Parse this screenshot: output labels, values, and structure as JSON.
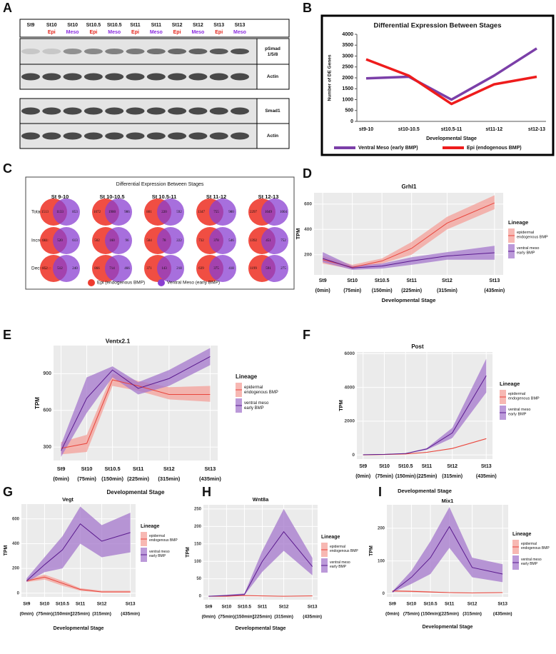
{
  "panel_labels": [
    "A",
    "B",
    "C",
    "D",
    "E",
    "F",
    "G",
    "H",
    "I"
  ],
  "blot": {
    "lanes": [
      {
        "stage": "St9"
      },
      {
        "stage": "St10",
        "tissue": "Epi",
        "color": "#e3241b"
      },
      {
        "stage": "St10",
        "tissue": "Meso",
        "color": "#8b2be0"
      },
      {
        "stage": "St10.5",
        "tissue": "Epi",
        "color": "#e3241b"
      },
      {
        "stage": "St10.5",
        "tissue": "Meso",
        "color": "#8b2be0"
      },
      {
        "stage": "St11",
        "tissue": "Epi",
        "color": "#e3241b"
      },
      {
        "stage": "St11",
        "tissue": "Meso",
        "color": "#8b2be0"
      },
      {
        "stage": "St12",
        "tissue": "Epi",
        "color": "#e3241b"
      },
      {
        "stage": "St12",
        "tissue": "Meso",
        "color": "#8b2be0"
      },
      {
        "stage": "St13",
        "tissue": "Epi",
        "color": "#e3241b"
      },
      {
        "stage": "St13",
        "tissue": "Meso",
        "color": "#8b2be0"
      }
    ],
    "rows": [
      "pSmad 1/5/8",
      "Actin",
      "Smad1",
      "Actin"
    ]
  },
  "venn": {
    "title": "Differential Expression Between Stages",
    "columns": [
      "St 9-10",
      "St 10-10.5",
      "St 10.5-11",
      "St 11-12",
      "St 12-13"
    ],
    "rows": [
      "Total",
      "Increase",
      "Decrease"
    ],
    "counts": [
      [
        [
          1513,
          1133,
          853
        ],
        [
          1072,
          1900,
          986
        ],
        [
          801,
          220,
          592
        ],
        [
          1347,
          755,
          980
        ],
        [
          2297,
          1049,
          1004
        ]
      ],
      [
        [
          661,
          520,
          613
        ],
        [
          502,
          160,
          96
        ],
        [
          584,
          78,
          222
        ],
        [
          732,
          378,
          546
        ],
        [
          1392,
          451,
          752
        ]
      ],
      [
        [
          852,
          512,
          240
        ],
        [
          866,
          714,
          466
        ],
        [
          371,
          143,
          218
        ],
        [
          639,
          375,
          418
        ],
        [
          1199,
          591,
          275
        ]
      ]
    ],
    "legend": [
      {
        "name": "Epi (endogenous BMP)",
        "color": "#ee3b2f"
      },
      {
        "name": "Ventral Meso (early BMP)",
        "color": "#8a3fd1"
      }
    ]
  },
  "chart_data": [
    {
      "type": "line",
      "title": "Differential Expression Between Stages",
      "ylabel": "Number of DE Genes",
      "xlabel": "Developmental Stage",
      "categories": [
        "st9-10",
        "st10-10.5",
        "st10.5-11",
        "st11-12",
        "st12-13"
      ],
      "ylim": [
        0,
        4000
      ],
      "yticks": [
        0,
        500,
        1000,
        1500,
        2000,
        2500,
        3000,
        3500,
        4000
      ],
      "legend": "bottom",
      "series": [
        {
          "name": "Ventral Meso (early BMP)",
          "color": "#7b3fa8",
          "values": [
            1975,
            2050,
            1000,
            2100,
            3350
          ]
        },
        {
          "name": "Epi (endogenous BMP)",
          "color": "#ee1c1c",
          "values": [
            2850,
            2100,
            800,
            1700,
            2050
          ]
        }
      ]
    },
    {
      "type": "line",
      "title": "Grhl1",
      "ylabel": "TPM",
      "xlabel": "Developmental Stage",
      "legend_title": "Lineage",
      "grid": true,
      "x": [
        0,
        75,
        150,
        225,
        315,
        435
      ],
      "xlim": [
        -22,
        457
      ],
      "xticks": [
        {
          "value": 0,
          "label": "St9"
        },
        {
          "value": 75,
          "label": "St10"
        },
        {
          "value": 150,
          "label": "St10.5"
        },
        {
          "value": 225,
          "label": "St11"
        },
        {
          "value": 315,
          "label": "St12"
        },
        {
          "value": 435,
          "label": "St13"
        }
      ],
      "xticks_time": [
        {
          "value": 0,
          "label": "(0min)"
        },
        {
          "value": 75,
          "label": "(75min)"
        },
        {
          "value": 150,
          "label": "(150min)"
        },
        {
          "value": 225,
          "label": "(225min)"
        },
        {
          "value": 315,
          "label": "(315min)"
        },
        {
          "value": 435,
          "label": "(435min)"
        }
      ],
      "ylim": [
        40,
        690
      ],
      "yticks": [
        200,
        400,
        600
      ],
      "series": [
        {
          "name": "epidermal endogenous BMP",
          "color": "#e8453c",
          "band_color": "#f4a09a",
          "values": [
            160,
            100,
            150,
            250,
            450,
            610
          ],
          "lower": [
            130,
            85,
            130,
            200,
            400,
            560
          ],
          "upper": [
            190,
            120,
            170,
            300,
            500,
            670
          ]
        },
        {
          "name": "ventral meso early BMP",
          "color": "#5b1a8e",
          "band_color": "#a477cc",
          "values": [
            170,
            95,
            110,
            150,
            190,
            215
          ],
          "lower": [
            140,
            80,
            90,
            120,
            160,
            160
          ],
          "upper": [
            220,
            110,
            130,
            180,
            220,
            270
          ]
        }
      ]
    },
    {
      "type": "line",
      "title": "Ventx2.1",
      "ylabel": "TPM",
      "xlabel": "Developmental Stage",
      "legend_title": "Lineage",
      "grid": true,
      "x": [
        0,
        75,
        150,
        225,
        315,
        435
      ],
      "xlim": [
        -22,
        457
      ],
      "xticks": [
        {
          "value": 0,
          "label": "St9"
        },
        {
          "value": 75,
          "label": "St10"
        },
        {
          "value": 150,
          "label": "St10.5"
        },
        {
          "value": 225,
          "label": "St11"
        },
        {
          "value": 315,
          "label": "St12"
        },
        {
          "value": 435,
          "label": "St13"
        }
      ],
      "xticks_time": [
        {
          "value": 0,
          "label": "(0min)"
        },
        {
          "value": 75,
          "label": "(75min)"
        },
        {
          "value": 150,
          "label": "(150min)"
        },
        {
          "value": 225,
          "label": "(225min)"
        },
        {
          "value": 315,
          "label": "(315min)"
        },
        {
          "value": 435,
          "label": "(435min)"
        }
      ],
      "ylim": [
        190,
        1130
      ],
      "yticks": [
        300,
        600,
        900
      ],
      "series": [
        {
          "name": "epidermal endogenous BMP",
          "color": "#e8453c",
          "band_color": "#f4a09a",
          "values": [
            290,
            330,
            850,
            800,
            730,
            730
          ],
          "lower": [
            240,
            260,
            800,
            760,
            690,
            670
          ],
          "upper": [
            340,
            400,
            900,
            840,
            790,
            800
          ]
        },
        {
          "name": "ventral meso early BMP",
          "color": "#5b1a8e",
          "band_color": "#a477cc",
          "values": [
            270,
            700,
            930,
            780,
            860,
            1040
          ],
          "lower": [
            220,
            580,
            870,
            730,
            800,
            970
          ],
          "upper": [
            320,
            870,
            960,
            830,
            930,
            1110
          ]
        }
      ]
    },
    {
      "type": "line",
      "title": "Post",
      "ylabel": "TPM",
      "xlabel": "Developmental Stage",
      "legend_title": "Lineage",
      "grid": true,
      "x": [
        0,
        75,
        150,
        225,
        315,
        435
      ],
      "xlim": [
        -22,
        457
      ],
      "xticks": [
        {
          "value": 0,
          "label": "St9"
        },
        {
          "value": 75,
          "label": "St10"
        },
        {
          "value": 150,
          "label": "St10.5"
        },
        {
          "value": 225,
          "label": "St11"
        },
        {
          "value": 315,
          "label": "St12"
        },
        {
          "value": 435,
          "label": "St13"
        }
      ],
      "xticks_time": [
        {
          "value": 0,
          "label": "(0min)"
        },
        {
          "value": 75,
          "label": "(75min)"
        },
        {
          "value": 150,
          "label": "(150min)"
        },
        {
          "value": 225,
          "label": "(225min)"
        },
        {
          "value": 315,
          "label": "(315min)"
        },
        {
          "value": 435,
          "label": "(435min)"
        }
      ],
      "ylim": [
        -250,
        6100
      ],
      "yticks": [
        0,
        2000,
        4000,
        6000
      ],
      "series": [
        {
          "name": "epidermal endogenous BMP",
          "color": "#e8453c",
          "band_color": "#f4a09a",
          "values": [
            0,
            20,
            50,
            150,
            380,
            960
          ],
          "lower": [
            0,
            10,
            40,
            130,
            350,
            930
          ],
          "upper": [
            10,
            30,
            60,
            170,
            410,
            990
          ]
        },
        {
          "name": "ventral meso early BMP",
          "color": "#5b1a8e",
          "band_color": "#a477cc",
          "values": [
            10,
            30,
            80,
            350,
            1300,
            4700
          ],
          "lower": [
            0,
            20,
            60,
            300,
            1000,
            3700
          ],
          "upper": [
            20,
            40,
            100,
            400,
            1600,
            5700
          ]
        }
      ]
    },
    {
      "type": "line",
      "title": "Vegt",
      "ylabel": "TPM",
      "xlabel": "Developmental Stage",
      "legend_title": "Lineage",
      "grid": true,
      "x": [
        0,
        75,
        150,
        225,
        315,
        435
      ],
      "xlim": [
        -22,
        457
      ],
      "xticks": [
        {
          "value": 0,
          "label": "St9"
        },
        {
          "value": 75,
          "label": "St10"
        },
        {
          "value": 150,
          "label": "St10.5"
        },
        {
          "value": 225,
          "label": "St11"
        },
        {
          "value": 315,
          "label": "St12"
        },
        {
          "value": 435,
          "label": "St13"
        }
      ],
      "xticks_time": [
        {
          "value": 0,
          "label": "(0min)"
        },
        {
          "value": 75,
          "label": "(75min)"
        },
        {
          "value": 150,
          "label": "(150min)"
        },
        {
          "value": 225,
          "label": "(225min)"
        },
        {
          "value": 315,
          "label": "(315min)"
        },
        {
          "value": 435,
          "label": "(435min)"
        }
      ],
      "ylim": [
        -30,
        720
      ],
      "yticks": [
        0,
        200,
        400,
        600
      ],
      "series": [
        {
          "name": "epidermal endogenous BMP",
          "color": "#e8453c",
          "band_color": "#f4a09a",
          "values": [
            100,
            130,
            80,
            30,
            10,
            10
          ],
          "lower": [
            90,
            110,
            60,
            20,
            5,
            5
          ],
          "upper": [
            110,
            150,
            100,
            40,
            20,
            20
          ]
        },
        {
          "name": "ventral meso early BMP",
          "color": "#5b1a8e",
          "band_color": "#a477cc",
          "values": [
            100,
            230,
            350,
            560,
            420,
            490
          ],
          "lower": [
            90,
            170,
            200,
            400,
            290,
            330
          ],
          "upper": [
            120,
            290,
            460,
            700,
            550,
            650
          ]
        }
      ]
    },
    {
      "type": "line",
      "title": "Wnt8a",
      "ylabel": "TPM",
      "xlabel": "Developmental Stage",
      "legend_title": "Lineage",
      "grid": true,
      "x": [
        0,
        75,
        150,
        225,
        315,
        435
      ],
      "xlim": [
        -22,
        457
      ],
      "xticks": [
        {
          "value": 0,
          "label": "St9"
        },
        {
          "value": 75,
          "label": "St10"
        },
        {
          "value": 150,
          "label": "St10.5"
        },
        {
          "value": 225,
          "label": "St11"
        },
        {
          "value": 315,
          "label": "St12"
        },
        {
          "value": 435,
          "label": "St13"
        }
      ],
      "xticks_time": [
        {
          "value": 0,
          "label": "(0min)"
        },
        {
          "value": 75,
          "label": "(75min)"
        },
        {
          "value": 150,
          "label": "(150min)"
        },
        {
          "value": 225,
          "label": "(225min)"
        },
        {
          "value": 315,
          "label": "(315min)"
        },
        {
          "value": 435,
          "label": "(435min)"
        }
      ],
      "ylim": [
        -10,
        262
      ],
      "yticks": [
        0,
        50,
        100,
        150,
        200,
        250
      ],
      "series": [
        {
          "name": "epidermal endogenous BMP",
          "color": "#e8453c",
          "band_color": "#f4a09a",
          "values": [
            0,
            0,
            2,
            1,
            0,
            1
          ],
          "lower": [
            0,
            0,
            1,
            0,
            0,
            0
          ],
          "upper": [
            1,
            1,
            3,
            2,
            1,
            2
          ]
        },
        {
          "name": "ventral meso early BMP",
          "color": "#5b1a8e",
          "band_color": "#a477cc",
          "values": [
            0,
            2,
            5,
            100,
            185,
            85
          ],
          "lower": [
            0,
            1,
            3,
            70,
            130,
            60
          ],
          "upper": [
            1,
            4,
            8,
            130,
            250,
            110
          ]
        }
      ]
    },
    {
      "type": "line",
      "title": "Mix1",
      "ylabel": "TPM",
      "xlabel": "Developmental Stage",
      "legend_title": "Lineage",
      "grid": true,
      "x": [
        0,
        75,
        150,
        225,
        315,
        435
      ],
      "xlim": [
        -22,
        457
      ],
      "xticks": [
        {
          "value": 0,
          "label": "St9"
        },
        {
          "value": 75,
          "label": "St10"
        },
        {
          "value": 150,
          "label": "St10.5"
        },
        {
          "value": 225,
          "label": "St11"
        },
        {
          "value": 315,
          "label": "St12"
        },
        {
          "value": 435,
          "label": "St13"
        }
      ],
      "xticks_time": [
        {
          "value": 0,
          "label": "(0min)"
        },
        {
          "value": 75,
          "label": "(75min)"
        },
        {
          "value": 150,
          "label": "(150min)"
        },
        {
          "value": 225,
          "label": "(225min)"
        },
        {
          "value": 315,
          "label": "(315min)"
        },
        {
          "value": 435,
          "label": "(435min)"
        }
      ],
      "ylim": [
        -10,
        272
      ],
      "yticks": [
        0,
        100,
        200
      ],
      "series": [
        {
          "name": "epidermal endogenous BMP",
          "color": "#e8453c",
          "band_color": "#f4a09a",
          "values": [
            8,
            7,
            5,
            3,
            2,
            3
          ],
          "lower": [
            6,
            5,
            3,
            2,
            1,
            2
          ],
          "upper": [
            10,
            9,
            7,
            4,
            3,
            4
          ]
        },
        {
          "name": "ventral meso early BMP",
          "color": "#5b1a8e",
          "band_color": "#a477cc",
          "values": [
            5,
            50,
            110,
            205,
            80,
            60
          ],
          "lower": [
            3,
            30,
            60,
            140,
            50,
            35
          ],
          "upper": [
            7,
            70,
            160,
            265,
            110,
            90
          ]
        }
      ]
    }
  ]
}
